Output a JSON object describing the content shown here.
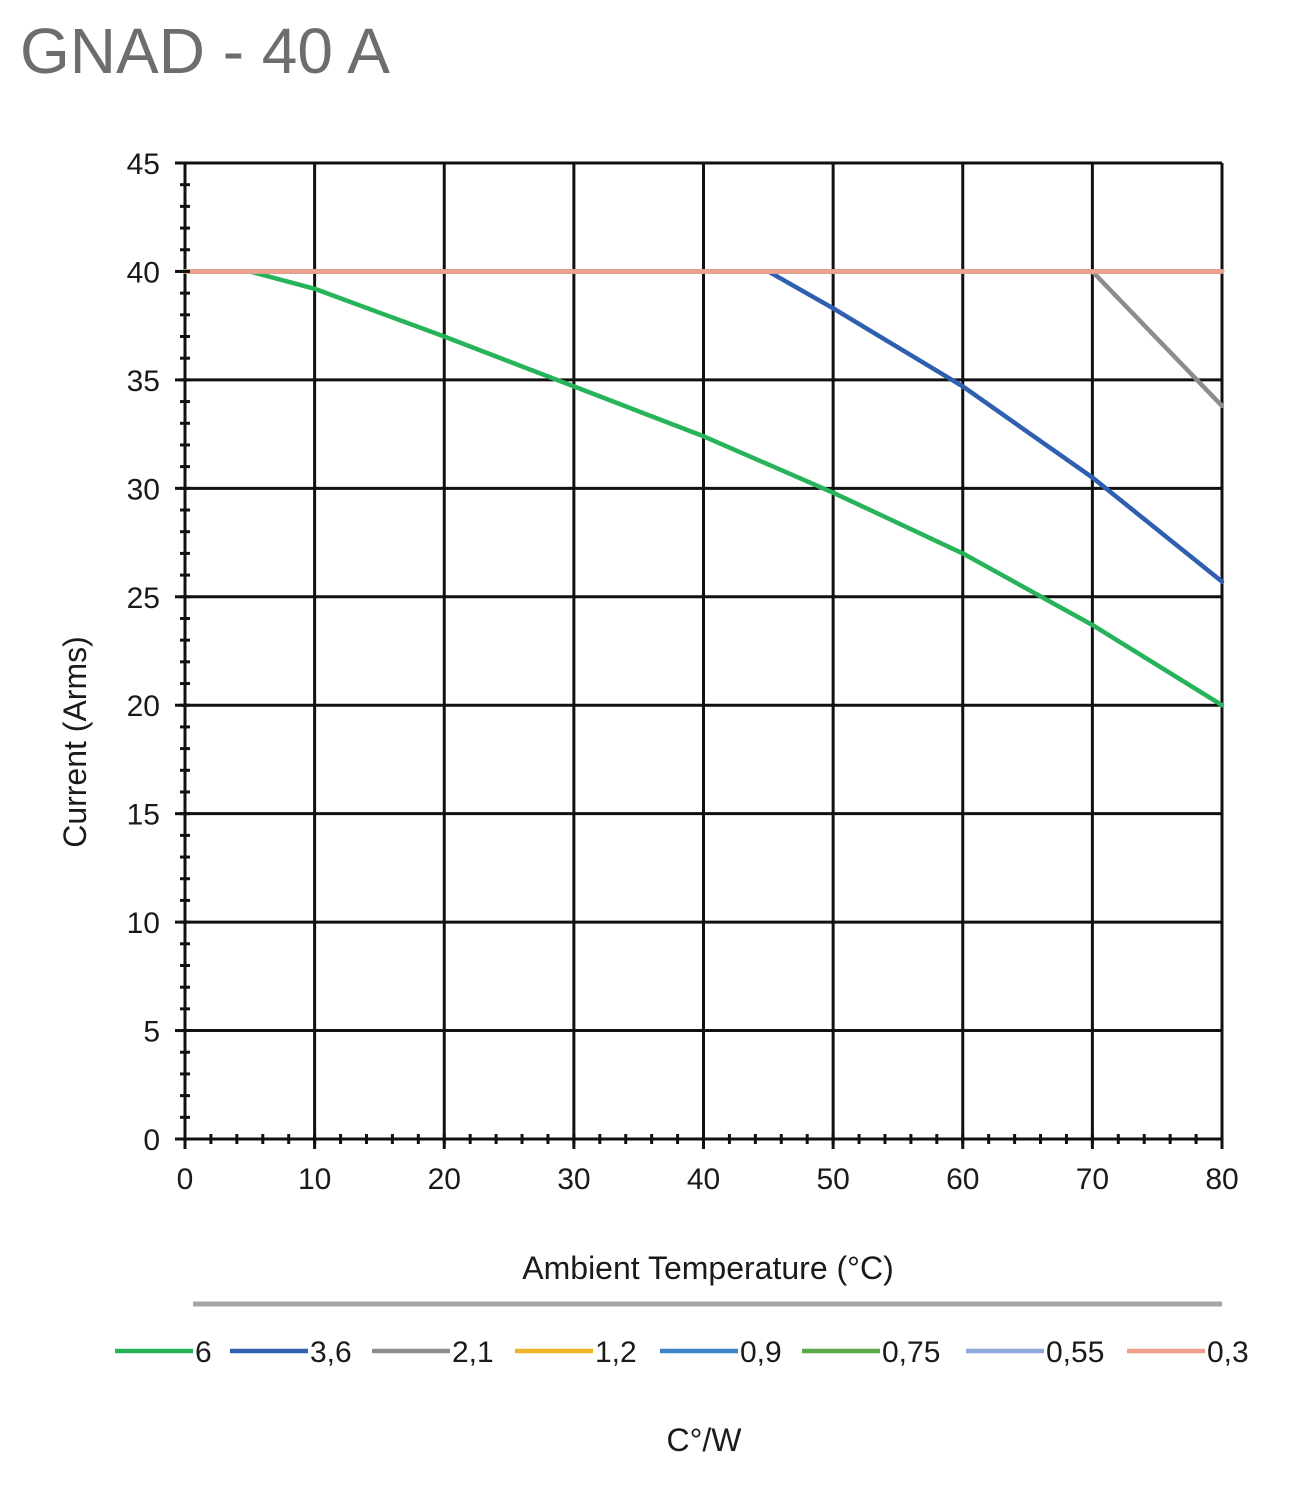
{
  "page": {
    "title": "GNAD - 40 A"
  },
  "chart_data": {
    "type": "line",
    "xlabel": "Ambient Temperature (°C)",
    "ylabel": "Current (Arms)",
    "xlim": [
      0,
      80
    ],
    "ylim": [
      0,
      45
    ],
    "x_ticks": [
      0,
      10,
      20,
      30,
      40,
      50,
      60,
      70,
      80
    ],
    "x_tick_labels": [
      "0",
      "10",
      "20",
      "30",
      "40",
      "50",
      "60",
      "70",
      "80"
    ],
    "y_ticks": [
      0,
      5,
      10,
      15,
      20,
      25,
      30,
      35,
      40,
      45
    ],
    "y_tick_labels": [
      "0",
      "5",
      "10",
      "15",
      "20",
      "25",
      "30",
      "35",
      "40",
      "45"
    ],
    "grid": true,
    "legend_position": "bottom",
    "legend_title": "C°/W",
    "series": [
      {
        "name": "6",
        "color": "#27b35a",
        "x": [
          0,
          5,
          10,
          20,
          30,
          40,
          50,
          60,
          70,
          80
        ],
        "y": [
          40,
          40,
          39.2,
          37,
          34.7,
          32.4,
          29.8,
          27,
          23.7,
          20
        ]
      },
      {
        "name": "3,6",
        "color": "#2f5fb0",
        "x": [
          0,
          45,
          50,
          60,
          70,
          80
        ],
        "y": [
          40,
          40,
          38.3,
          34.7,
          30.5,
          25.7
        ]
      },
      {
        "name": "2,1",
        "color": "#8c8c8c",
        "x": [
          0,
          70,
          80
        ],
        "y": [
          40,
          40,
          33.8
        ]
      },
      {
        "name": "1,2",
        "color": "#f0b42a",
        "x": [
          0,
          80
        ],
        "y": [
          40,
          40
        ]
      },
      {
        "name": "0,9",
        "color": "#3d86c6",
        "x": [
          0,
          80
        ],
        "y": [
          40,
          40
        ]
      },
      {
        "name": "0,75",
        "color": "#5aa846",
        "x": [
          0,
          80
        ],
        "y": [
          40,
          40
        ]
      },
      {
        "name": "0,55",
        "color": "#8fa8dc",
        "x": [
          0,
          80
        ],
        "y": [
          40,
          40
        ]
      },
      {
        "name": "0,3",
        "color": "#f0a08c",
        "x": [
          0,
          80
        ],
        "y": [
          40,
          40
        ]
      }
    ]
  }
}
